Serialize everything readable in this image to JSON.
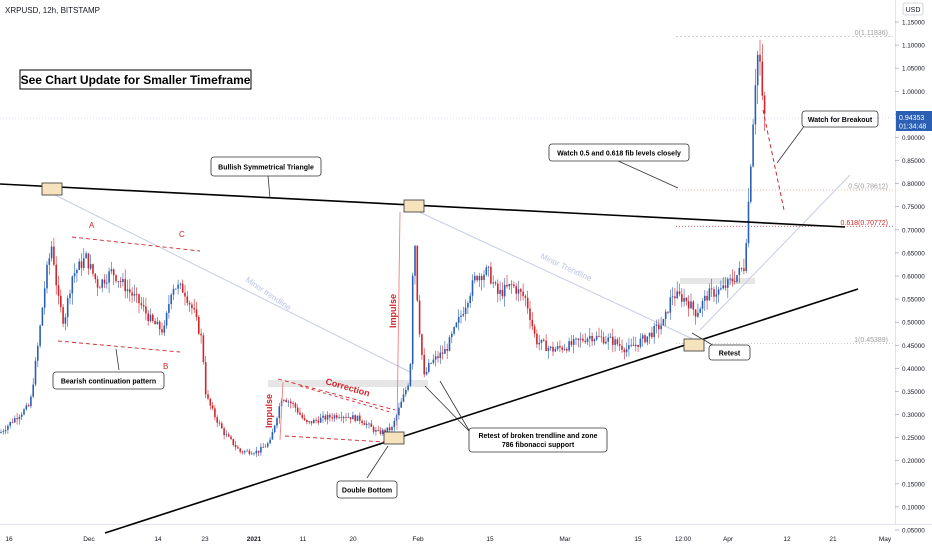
{
  "symbol_label": "XRPUSD, 12h, BITSTAMP",
  "currency_label": "USD",
  "price_axis": {
    "ticks": [
      "1.15000",
      "1.10000",
      "1.05000",
      "1.00000",
      "0.95000",
      "0.90000",
      "0.85000",
      "0.80000",
      "0.75000",
      "0.70000",
      "0.65000",
      "0.60000",
      "0.55000",
      "0.50000",
      "0.45000",
      "0.40000",
      "0.35000",
      "0.30000",
      "0.25000",
      "0.20000",
      "0.15000",
      "0.10000",
      "0.05000"
    ],
    "current_price": "0.94353",
    "countdown": "01:34:48"
  },
  "time_axis": {
    "ticks": [
      "16",
      "Dec",
      "14",
      "23",
      "2021",
      "11",
      "20",
      "Feb",
      "15",
      "Mar",
      "15",
      "12:00",
      "Apr",
      "12",
      "21",
      "May"
    ]
  },
  "annotations": {
    "update_box": "See Chart Update for Smaller Timeframe",
    "triangle": "Bullish Symmetrical Triangle",
    "watch_fib": "Watch 0.5 and 0.618 fib levels closely",
    "watch_breakout": "Watch for Breakout",
    "bearish": "Bearish continuation pattern",
    "double_bottom": "Double Bottom",
    "retest_broken": "Retest of broken trendline and zone",
    "retest_broken_2": "786 fibonacci support",
    "retest": "Retest",
    "impulse_1": "Impulse",
    "impulse_2": "Impulse",
    "correction": "Correction",
    "minor_trendline": "Minor trendline",
    "minor_trendline_2": "Minor Trendline",
    "point_a": "A",
    "point_b": "B",
    "point_c": "C"
  },
  "fib_levels": [
    {
      "label": "0(1.11836)",
      "value": 1.11836
    },
    {
      "label": "0.5(0.78612)",
      "value": 0.78612
    },
    {
      "label": "0.618(0.70772)",
      "value": 0.70772
    },
    {
      "label": "1(0.45389)",
      "value": 0.45389
    }
  ],
  "colors": {
    "up": "#2b5fb4",
    "down": "#d0262b",
    "trendline": "#000000",
    "annotation_red": "#d0262b",
    "minor": "#b9c3e3"
  },
  "chart_data": {
    "type": "candlestick",
    "title": "XRPUSD, 12h, BITSTAMP",
    "ylabel": "USD",
    "ylim": [
      0.04,
      1.17
    ],
    "x_ticks": [
      "16",
      "Dec",
      "14",
      "23",
      "2021",
      "11",
      "20",
      "Feb",
      "15",
      "Mar",
      "15",
      "12:00",
      "Apr",
      "12",
      "21",
      "May"
    ],
    "price_path": [
      {
        "date": "Nov 16",
        "price": 0.26
      },
      {
        "date": "Nov 18",
        "price": 0.28
      },
      {
        "date": "Nov 20",
        "price": 0.32
      },
      {
        "date": "Nov 22",
        "price": 0.45
      },
      {
        "date": "Nov 24",
        "price": 0.67
      },
      {
        "date": "Nov 25",
        "price": 0.55
      },
      {
        "date": "Nov 27",
        "price": 0.5
      },
      {
        "date": "Nov 29",
        "price": 0.6
      },
      {
        "date": "Dec 1",
        "price": 0.64
      },
      {
        "date": "Dec 4",
        "price": 0.58
      },
      {
        "date": "Dec 8",
        "price": 0.6
      },
      {
        "date": "Dec 13",
        "price": 0.54
      },
      {
        "date": "Dec 16",
        "price": 0.48
      },
      {
        "date": "Dec 18",
        "price": 0.58
      },
      {
        "date": "Dec 20",
        "price": 0.56
      },
      {
        "date": "Dec 22",
        "price": 0.46
      },
      {
        "date": "Dec 23",
        "price": 0.33
      },
      {
        "date": "Dec 24",
        "price": 0.28
      },
      {
        "date": "Dec 26",
        "price": 0.22
      },
      {
        "date": "Dec 29",
        "price": 0.22
      },
      {
        "date": "Jan 2",
        "price": 0.23
      },
      {
        "date": "Jan 5",
        "price": 0.34
      },
      {
        "date": "Jan 8",
        "price": 0.3
      },
      {
        "date": "Jan 11",
        "price": 0.27
      },
      {
        "date": "Jan 15",
        "price": 0.29
      },
      {
        "date": "Jan 20",
        "price": 0.3
      },
      {
        "date": "Jan 25",
        "price": 0.26
      },
      {
        "date": "Jan 28",
        "price": 0.27
      },
      {
        "date": "Jan 30",
        "price": 0.38
      },
      {
        "date": "Jan 31",
        "price": 0.72
      },
      {
        "date": "Feb 1",
        "price": 0.45
      },
      {
        "date": "Feb 2",
        "price": 0.38
      },
      {
        "date": "Feb 5",
        "price": 0.41
      },
      {
        "date": "Feb 9",
        "price": 0.45
      },
      {
        "date": "Feb 12",
        "price": 0.59
      },
      {
        "date": "Feb 15",
        "price": 0.6
      },
      {
        "date": "Feb 18",
        "price": 0.55
      },
      {
        "date": "Feb 21",
        "price": 0.58
      },
      {
        "date": "Feb 24",
        "price": 0.47
      },
      {
        "date": "Feb 27",
        "price": 0.44
      },
      {
        "date": "Mar 3",
        "price": 0.45
      },
      {
        "date": "Mar 6",
        "price": 0.47
      },
      {
        "date": "Mar 10",
        "price": 0.45
      },
      {
        "date": "Mar 15",
        "price": 0.44
      },
      {
        "date": "Mar 18",
        "price": 0.46
      },
      {
        "date": "Mar 21",
        "price": 0.47
      },
      {
        "date": "Mar 23",
        "price": 0.56
      },
      {
        "date": "Mar 26",
        "price": 0.52
      },
      {
        "date": "Mar 29",
        "price": 0.57
      },
      {
        "date": "Apr 1",
        "price": 0.58
      },
      {
        "date": "Apr 3",
        "price": 0.62
      },
      {
        "date": "Apr 4",
        "price": 0.74
      },
      {
        "date": "Apr 5",
        "price": 1.05
      },
      {
        "date": "Apr 6",
        "price": 1.1
      },
      {
        "date": "Apr 7",
        "price": 0.98
      },
      {
        "date": "Apr 8",
        "price": 0.94
      }
    ],
    "trendlines": [
      {
        "name": "Bullish Symmetrical Triangle upper",
        "from": {
          "date": "Nov 4",
          "price": 0.8
        },
        "to": {
          "date": "Apr 24",
          "price": 0.71
        }
      },
      {
        "name": "Bullish Symmetrical Triangle lower",
        "from": {
          "date": "Dec 10",
          "price": 0.04
        },
        "to": {
          "date": "Apr 26",
          "price": 0.57
        }
      }
    ],
    "current_price": 0.94353
  }
}
